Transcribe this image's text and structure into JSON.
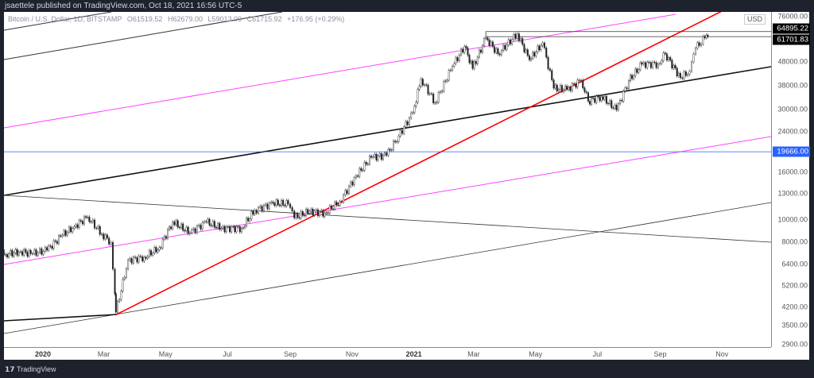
{
  "header": {
    "published": "jsaettele published on TradingView.com, Oct 18, 2021 16:56 UTC-5"
  },
  "legend": {
    "symbol": "Bitcoin / U.S. Dollar, 1D, BITSTAMP",
    "open": "O61519.52",
    "high": "H62679.00",
    "low": "L59013.00",
    "close": "C61715.92",
    "change": "+176.95 (+0.29%)"
  },
  "footer": {
    "brand": "TradingView",
    "logo_icon": "tradingview-logo-icon"
  },
  "colors": {
    "background": "#ffffff",
    "frame": "#1e222d",
    "trendline_red": "#ff0000",
    "channel_magenta": "#ff44ff",
    "horizontal_blue": "#2962ff",
    "candle": "#000000"
  },
  "chart_data": {
    "type": "candlestick",
    "scale": "log",
    "currency": "USD",
    "ylim": [
      2900,
      76000
    ],
    "price_ticks": [
      "76000.00",
      "48000.00",
      "38000.00",
      "30000.00",
      "24000.00",
      "16000.00",
      "13000.00",
      "10000.00",
      "8000.00",
      "6400.00",
      "5200.00",
      "4200.00",
      "3500.00",
      "2900.00"
    ],
    "price_tick_values": [
      76000,
      48000,
      38000,
      30000,
      24000,
      16000,
      13000,
      10000,
      8000,
      6400,
      5200,
      4200,
      3500,
      2900
    ],
    "price_tags": [
      {
        "label": "64895.22",
        "value": 64895.22,
        "color": "#000000"
      },
      {
        "label": "61701.83",
        "value": 61701.83,
        "color": "#000000"
      },
      {
        "label": "19666.00",
        "value": 19666,
        "color": "#2962ff"
      }
    ],
    "time_ticks": [
      {
        "label": "2020",
        "date": "2020-01-01",
        "bold": true
      },
      {
        "label": "Mar",
        "date": "2020-03-01"
      },
      {
        "label": "May",
        "date": "2020-05-01"
      },
      {
        "label": "Jul",
        "date": "2020-07-01"
      },
      {
        "label": "Sep",
        "date": "2020-09-01"
      },
      {
        "label": "Nov",
        "date": "2020-11-01"
      },
      {
        "label": "2021",
        "date": "2021-01-01",
        "bold": true
      },
      {
        "label": "Mar",
        "date": "2021-03-01"
      },
      {
        "label": "May",
        "date": "2021-05-01"
      },
      {
        "label": "Jul",
        "date": "2021-07-01"
      },
      {
        "label": "Sep",
        "date": "2021-09-01"
      },
      {
        "label": "Nov",
        "date": "2021-11-01"
      }
    ],
    "closes": [
      [
        "2019-11-10",
        8800
      ],
      [
        "2019-11-25",
        7100
      ],
      [
        "2019-12-10",
        7300
      ],
      [
        "2019-12-20",
        7150
      ],
      [
        "2020-01-05",
        7400
      ],
      [
        "2020-01-20",
        8600
      ],
      [
        "2020-02-01",
        9350
      ],
      [
        "2020-02-14",
        10300
      ],
      [
        "2020-02-28",
        8700
      ],
      [
        "2020-03-08",
        8000
      ],
      [
        "2020-03-12",
        4800
      ],
      [
        "2020-03-13",
        4000
      ],
      [
        "2020-03-25",
        6700
      ],
      [
        "2020-04-10",
        6900
      ],
      [
        "2020-04-25",
        7600
      ],
      [
        "2020-05-08",
        9800
      ],
      [
        "2020-05-25",
        8800
      ],
      [
        "2020-06-10",
        9800
      ],
      [
        "2020-06-25",
        9200
      ],
      [
        "2020-07-15",
        9200
      ],
      [
        "2020-07-28",
        11000
      ],
      [
        "2020-08-15",
        11800
      ],
      [
        "2020-08-30",
        11700
      ],
      [
        "2020-09-05",
        10200
      ],
      [
        "2020-09-20",
        10900
      ],
      [
        "2020-10-05",
        10700
      ],
      [
        "2020-10-20",
        12000
      ],
      [
        "2020-11-05",
        15500
      ],
      [
        "2020-11-20",
        18600
      ],
      [
        "2020-12-05",
        19000
      ],
      [
        "2020-12-17",
        23000
      ],
      [
        "2020-12-31",
        29000
      ],
      [
        "2021-01-08",
        40500
      ],
      [
        "2021-01-22",
        32000
      ],
      [
        "2021-02-08",
        46000
      ],
      [
        "2021-02-20",
        56000
      ],
      [
        "2021-02-28",
        45000
      ],
      [
        "2021-03-13",
        61000
      ],
      [
        "2021-03-25",
        52000
      ],
      [
        "2021-04-13",
        63500
      ],
      [
        "2021-04-25",
        49000
      ],
      [
        "2021-05-08",
        58000
      ],
      [
        "2021-05-19",
        37000
      ],
      [
        "2021-06-01",
        36500
      ],
      [
        "2021-06-15",
        40000
      ],
      [
        "2021-06-22",
        32500
      ],
      [
        "2021-07-05",
        34000
      ],
      [
        "2021-07-20",
        29800
      ],
      [
        "2021-08-01",
        39800
      ],
      [
        "2021-08-14",
        47000
      ],
      [
        "2021-08-30",
        47000
      ],
      [
        "2021-09-06",
        52000
      ],
      [
        "2021-09-21",
        41000
      ],
      [
        "2021-09-30",
        43800
      ],
      [
        "2021-10-06",
        55000
      ],
      [
        "2021-10-15",
        61000
      ],
      [
        "2021-10-18",
        61715.92
      ]
    ],
    "drawings": [
      {
        "type": "trendline",
        "color": "#ff0000",
        "from": [
          "2020-03-13",
          3900
        ]
      },
      {
        "type": "horizontal",
        "color": "#2962ff",
        "value": 19666
      },
      {
        "type": "box",
        "from": [
          "2021-03-13",
          64895.22
        ],
        "to_value": 61701.83
      }
    ]
  }
}
